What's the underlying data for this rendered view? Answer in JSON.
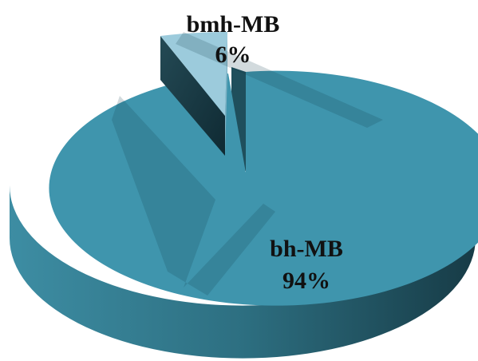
{
  "chart_data": {
    "type": "pie",
    "style": "3d-exploded",
    "slices": [
      {
        "label": "bmh-MB",
        "value": 6,
        "value_text": "6%",
        "color": "#9ccbdc",
        "exploded": true
      },
      {
        "label": "bh-MB",
        "value": 94,
        "value_text": "94%",
        "color": "#3f95ad",
        "exploded": false
      }
    ],
    "legend": "none"
  }
}
